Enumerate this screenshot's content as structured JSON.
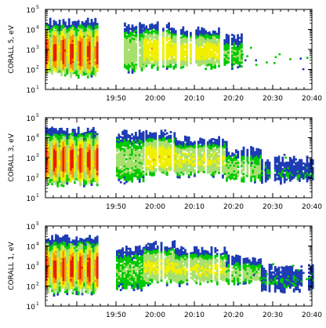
{
  "chart_data": [
    {
      "type": "heatmap",
      "ylabel": "CORALL 5, eV",
      "xlim": [
        "19:32",
        "20:40"
      ],
      "xticks": [
        "19:50",
        "20:00",
        "20:10",
        "20:20",
        "20:30",
        "20:40"
      ],
      "ylim": [
        10,
        100000
      ],
      "yscale": "log",
      "yticks": [
        {
          "base": "10",
          "exp": "1"
        },
        {
          "base": "10",
          "exp": "2"
        },
        {
          "base": "10",
          "exp": "3"
        },
        {
          "base": "10",
          "exp": "4"
        },
        {
          "base": "10",
          "exp": "5"
        }
      ],
      "colorscale": [
        "#1e3cb4",
        "#00c800",
        "#a8e070",
        "#f0f000",
        "#ff9000",
        "#e62000"
      ],
      "oscillation": {
        "t_start": "19:32",
        "t_end": "19:45",
        "peaks": 6
      },
      "blobs": [
        {
          "t0": "19:32",
          "t1": "19:45",
          "e_lo": 70,
          "e_hi": 30000,
          "peak": 0.95
        },
        {
          "t0": "19:52",
          "t1": "19:57",
          "e_lo": 100,
          "e_hi": 20000,
          "peak": 0.35
        },
        {
          "t0": "19:57",
          "t1": "20:04",
          "e_lo": 200,
          "e_hi": 20000,
          "peak": 0.55
        },
        {
          "t0": "20:04",
          "t1": "20:16",
          "e_lo": 200,
          "e_hi": 12000,
          "peak": 0.5
        },
        {
          "t0": "20:17",
          "t1": "20:22",
          "e_lo": 200,
          "e_hi": 5000,
          "peak": 0.25
        }
      ]
    },
    {
      "type": "heatmap",
      "ylabel": "CORALL 3, eV",
      "xlim": [
        "19:32",
        "20:40"
      ],
      "xticks": [
        "19:50",
        "20:00",
        "20:10",
        "20:20",
        "20:30",
        "20:40"
      ],
      "ylim": [
        10,
        100000
      ],
      "yscale": "log",
      "yticks": [
        {
          "base": "10",
          "exp": "1"
        },
        {
          "base": "10",
          "exp": "2"
        },
        {
          "base": "10",
          "exp": "3"
        },
        {
          "base": "10",
          "exp": "4"
        },
        {
          "base": "10",
          "exp": "5"
        }
      ],
      "colorscale": [
        "#1e3cb4",
        "#00c800",
        "#a8e070",
        "#f0f000",
        "#ff9000",
        "#e62000"
      ],
      "oscillation": {
        "t_start": "19:32",
        "t_end": "19:45",
        "peaks": 6
      },
      "blobs": [
        {
          "t0": "19:32",
          "t1": "19:45",
          "e_lo": 70,
          "e_hi": 30000,
          "peak": 0.95
        },
        {
          "t0": "19:50",
          "t1": "19:57",
          "e_lo": 100,
          "e_hi": 20000,
          "peak": 0.3
        },
        {
          "t0": "19:57",
          "t1": "20:05",
          "e_lo": 200,
          "e_hi": 20000,
          "peak": 0.55
        },
        {
          "t0": "20:05",
          "t1": "20:18",
          "e_lo": 200,
          "e_hi": 10000,
          "peak": 0.45
        },
        {
          "t0": "20:18",
          "t1": "20:27",
          "e_lo": 100,
          "e_hi": 3000,
          "peak": 0.3
        },
        {
          "t0": "20:27",
          "t1": "20:40",
          "e_lo": 100,
          "e_hi": 1000,
          "peak": 0.1
        }
      ]
    },
    {
      "type": "heatmap",
      "ylabel": "CORALL 1, eV",
      "xlim": [
        "19:32",
        "20:40"
      ],
      "xticks": [
        "19:50",
        "20:00",
        "20:10",
        "20:20",
        "20:30",
        "20:40"
      ],
      "ylim": [
        10,
        100000
      ],
      "yscale": "log",
      "yticks": [
        {
          "base": "10",
          "exp": "1"
        },
        {
          "base": "10",
          "exp": "2"
        },
        {
          "base": "10",
          "exp": "3"
        },
        {
          "base": "10",
          "exp": "4"
        },
        {
          "base": "10",
          "exp": "5"
        }
      ],
      "colorscale": [
        "#1e3cb4",
        "#00c800",
        "#a8e070",
        "#f0f000",
        "#ff9000",
        "#e62000"
      ],
      "oscillation": {
        "t_start": "19:32",
        "t_end": "19:45",
        "peaks": 6
      },
      "blobs": [
        {
          "t0": "19:32",
          "t1": "19:45",
          "e_lo": 70,
          "e_hi": 30000,
          "peak": 0.95
        },
        {
          "t0": "19:50",
          "t1": "19:57",
          "e_lo": 100,
          "e_hi": 10000,
          "peak": 0.25
        },
        {
          "t0": "19:57",
          "t1": "20:05",
          "e_lo": 200,
          "e_hi": 15000,
          "peak": 0.45
        },
        {
          "t0": "20:05",
          "t1": "20:18",
          "e_lo": 200,
          "e_hi": 8000,
          "peak": 0.45
        },
        {
          "t0": "20:18",
          "t1": "20:27",
          "e_lo": 200,
          "e_hi": 3000,
          "peak": 0.3
        },
        {
          "t0": "20:27",
          "t1": "20:40",
          "e_lo": 100,
          "e_hi": 1000,
          "peak": 0.1
        }
      ]
    }
  ]
}
